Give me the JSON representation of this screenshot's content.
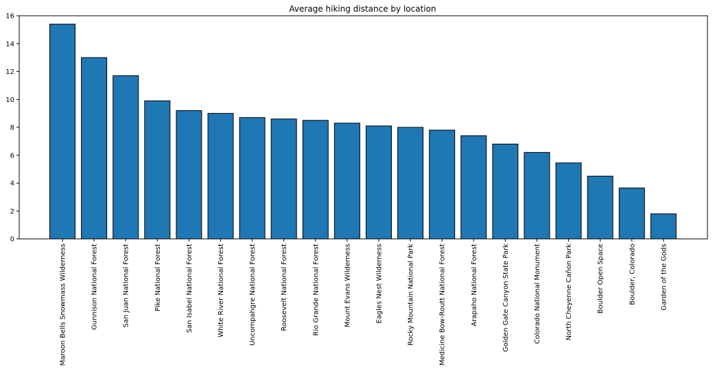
{
  "chart_data": {
    "type": "bar",
    "title": "Average hiking distance by location",
    "xlabel": "",
    "ylabel": "",
    "ylim": [
      0,
      16
    ],
    "yticks": [
      0,
      2,
      4,
      6,
      8,
      10,
      12,
      14,
      16
    ],
    "grid": false,
    "bar_color": "#1f77b4",
    "bar_edge_color": "#000000",
    "categories": [
      "Maroon Bells Snowmass Wilderness",
      "Gunnison National Forest",
      "San Juan National Forest",
      "Pike National Forest",
      "San Isabel National Forest",
      "White River National Forest",
      "Uncompahgre National Forest",
      "Roosevelt National Forest",
      "Rio Grande National Forest",
      "Mount Evans Wilderness",
      "Eagles Nest Wilderness",
      "Rocky Mountain National Park",
      "Medicine Bow-Routt National Forest",
      "Arapaho National Forest",
      "Golden Gate Canyon State Park",
      "Colorado National Monument",
      "North Cheyenne Cañon Park",
      "Boulder Open Space",
      "Boulder, Colorado",
      "Garden of the Gods"
    ],
    "values": [
      15.4,
      13.0,
      11.7,
      9.9,
      9.2,
      9.0,
      8.7,
      8.6,
      8.5,
      8.3,
      8.1,
      8.0,
      7.8,
      7.4,
      6.8,
      6.2,
      5.45,
      4.5,
      3.65,
      1.8
    ]
  }
}
